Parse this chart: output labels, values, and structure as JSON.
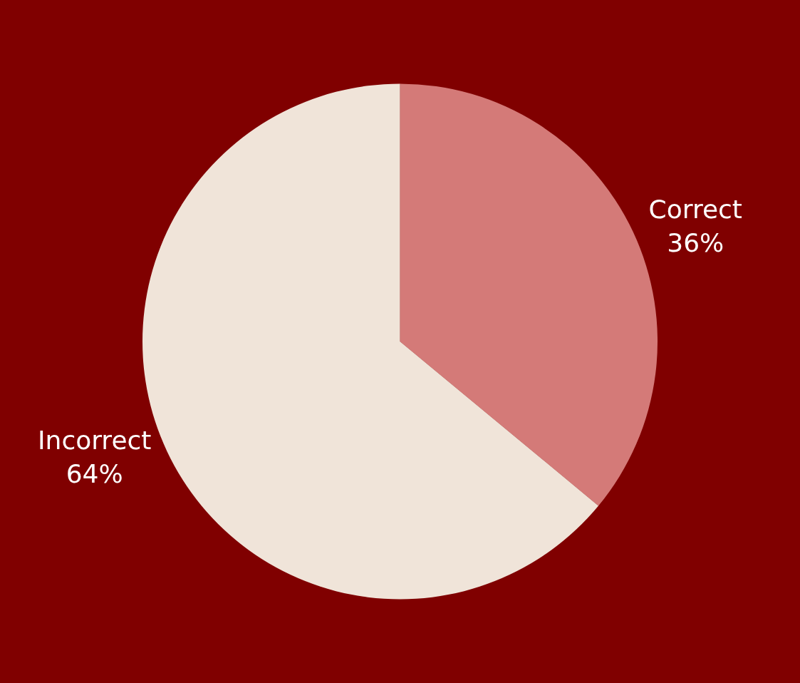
{
  "chart_data": {
    "type": "pie",
    "categories": [
      "Correct",
      "Incorrect"
    ],
    "values": [
      36,
      64
    ],
    "value_labels": [
      "36%",
      "64%"
    ],
    "colors": [
      "#d47a78",
      "#f0e4d9"
    ],
    "legend": false
  }
}
